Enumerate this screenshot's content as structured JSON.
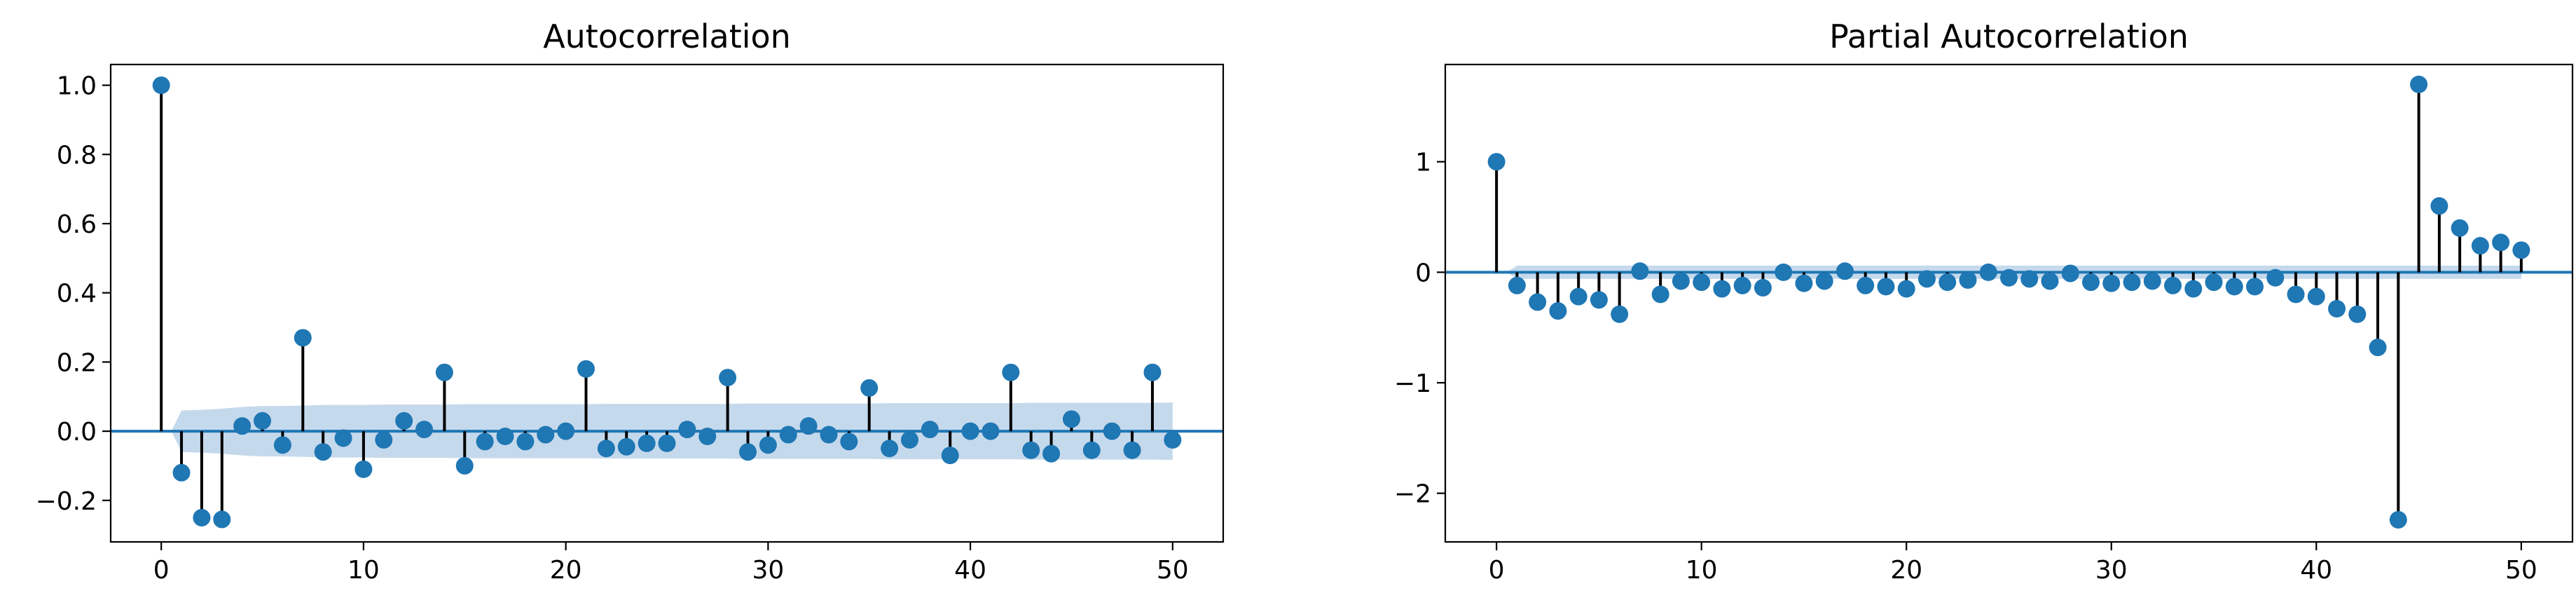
{
  "chart_data": [
    {
      "type": "stem",
      "title": "Autocorrelation",
      "xlabel": "",
      "ylabel": "",
      "xlim": [
        -2.5,
        52.5
      ],
      "ylim": [
        -0.32,
        1.06
      ],
      "xticks": [
        0,
        10,
        20,
        30,
        40,
        50
      ],
      "xtick_labels": [
        "0",
        "10",
        "20",
        "30",
        "40",
        "50"
      ],
      "yticks": [
        -0.2,
        0.0,
        0.2,
        0.4,
        0.6,
        0.8,
        1.0
      ],
      "ytick_labels": [
        "−0.2",
        "0.0",
        "0.2",
        "0.4",
        "0.6",
        "0.8",
        "1.0"
      ],
      "grid": false,
      "x": [
        0,
        1,
        2,
        3,
        4,
        5,
        6,
        7,
        8,
        9,
        10,
        11,
        12,
        13,
        14,
        15,
        16,
        17,
        18,
        19,
        20,
        21,
        22,
        23,
        24,
        25,
        26,
        27,
        28,
        29,
        30,
        31,
        32,
        33,
        34,
        35,
        36,
        37,
        38,
        39,
        40,
        41,
        42,
        43,
        44,
        45,
        46,
        47,
        48,
        49,
        50
      ],
      "values": [
        1.0,
        -0.12,
        -0.25,
        -0.255,
        0.015,
        0.03,
        -0.04,
        0.27,
        -0.06,
        -0.02,
        -0.11,
        -0.025,
        0.03,
        0.005,
        0.17,
        -0.1,
        -0.03,
        -0.015,
        -0.03,
        -0.01,
        0.0,
        0.18,
        -0.05,
        -0.045,
        -0.035,
        -0.035,
        0.005,
        -0.015,
        0.155,
        -0.06,
        -0.04,
        -0.01,
        0.015,
        -0.01,
        -0.03,
        0.125,
        -0.05,
        -0.025,
        0.005,
        -0.07,
        0.0,
        0.0,
        0.17,
        -0.055,
        -0.065,
        0.035,
        -0.055,
        0.0,
        -0.055,
        0.17,
        -0.025
      ],
      "confidence_band": [
        0.0,
        0.06,
        0.062,
        0.065,
        0.07,
        0.073,
        0.073,
        0.074,
        0.076,
        0.076,
        0.076,
        0.077,
        0.077,
        0.077,
        0.077,
        0.078,
        0.078,
        0.078,
        0.078,
        0.078,
        0.078,
        0.078,
        0.079,
        0.079,
        0.079,
        0.079,
        0.079,
        0.079,
        0.079,
        0.08,
        0.08,
        0.08,
        0.08,
        0.08,
        0.08,
        0.08,
        0.081,
        0.081,
        0.081,
        0.081,
        0.081,
        0.081,
        0.081,
        0.082,
        0.082,
        0.082,
        0.082,
        0.082,
        0.082,
        0.082,
        0.083
      ],
      "colors": {
        "marker": "#1f77b4",
        "stem": "#000000",
        "baseline": "#1f77b4",
        "band": "#c5d9ec"
      }
    },
    {
      "type": "stem",
      "title": "Partial Autocorrelation",
      "xlabel": "",
      "ylabel": "",
      "xlim": [
        -2.5,
        52.5
      ],
      "ylim": [
        -2.44,
        1.88
      ],
      "xticks": [
        0,
        10,
        20,
        30,
        40,
        50
      ],
      "xtick_labels": [
        "0",
        "10",
        "20",
        "30",
        "40",
        "50"
      ],
      "yticks": [
        -2,
        -1,
        0,
        1
      ],
      "ytick_labels": [
        "−2",
        "−1",
        "0",
        "1"
      ],
      "grid": false,
      "x": [
        0,
        1,
        2,
        3,
        4,
        5,
        6,
        7,
        8,
        9,
        10,
        11,
        12,
        13,
        14,
        15,
        16,
        17,
        18,
        19,
        20,
        21,
        22,
        23,
        24,
        25,
        26,
        27,
        28,
        29,
        30,
        31,
        32,
        33,
        34,
        35,
        36,
        37,
        38,
        39,
        40,
        41,
        42,
        43,
        44,
        45,
        46,
        47,
        48,
        49,
        50
      ],
      "values": [
        1.0,
        -0.12,
        -0.27,
        -0.35,
        -0.22,
        -0.25,
        -0.38,
        0.01,
        -0.2,
        -0.08,
        -0.09,
        -0.15,
        -0.12,
        -0.14,
        0.0,
        -0.1,
        -0.08,
        0.01,
        -0.12,
        -0.13,
        -0.15,
        -0.06,
        -0.09,
        -0.07,
        0.0,
        -0.05,
        -0.06,
        -0.08,
        -0.01,
        -0.09,
        -0.1,
        -0.09,
        -0.08,
        -0.12,
        -0.15,
        -0.09,
        -0.13,
        -0.13,
        -0.05,
        -0.2,
        -0.22,
        -0.33,
        -0.38,
        -0.68,
        -2.24,
        1.7,
        0.6,
        0.4,
        0.24,
        0.27,
        0.2
      ],
      "confidence_band": [
        0.0,
        0.06,
        0.06,
        0.06,
        0.06,
        0.06,
        0.06,
        0.06,
        0.06,
        0.06,
        0.06,
        0.06,
        0.06,
        0.06,
        0.06,
        0.06,
        0.06,
        0.06,
        0.06,
        0.06,
        0.06,
        0.06,
        0.06,
        0.06,
        0.06,
        0.06,
        0.06,
        0.06,
        0.06,
        0.06,
        0.06,
        0.06,
        0.06,
        0.06,
        0.06,
        0.06,
        0.06,
        0.06,
        0.06,
        0.06,
        0.06,
        0.06,
        0.06,
        0.06,
        0.06,
        0.06,
        0.06,
        0.06,
        0.06,
        0.06,
        0.06
      ],
      "colors": {
        "marker": "#1f77b4",
        "stem": "#000000",
        "baseline": "#1f77b4",
        "band": "#c5d9ec"
      }
    }
  ]
}
